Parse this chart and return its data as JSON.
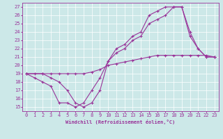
{
  "xlabel": "Windchill (Refroidissement éolien,°C)",
  "xlim": [
    -0.5,
    23.5
  ],
  "ylim": [
    14.5,
    27.5
  ],
  "xticks": [
    0,
    1,
    2,
    3,
    4,
    5,
    6,
    7,
    8,
    9,
    10,
    11,
    12,
    13,
    14,
    15,
    16,
    17,
    18,
    19,
    20,
    21,
    22,
    23
  ],
  "yticks": [
    15,
    16,
    17,
    18,
    19,
    20,
    21,
    22,
    23,
    24,
    25,
    26,
    27
  ],
  "bg_color": "#cce8e8",
  "line_color": "#993399",
  "grid_color": "#ffffff",
  "lines": [
    {
      "x": [
        0,
        1,
        2,
        3,
        4,
        5,
        6,
        7,
        8,
        9,
        10,
        11,
        12,
        13,
        14,
        15,
        16,
        17,
        18,
        19,
        20,
        21,
        22,
        23
      ],
      "y": [
        19,
        19,
        19,
        19,
        19,
        19,
        19,
        19,
        19.2,
        19.5,
        20,
        20.2,
        20.4,
        20.6,
        20.8,
        21,
        21.2,
        21.2,
        21.2,
        21.2,
        21.2,
        21.2,
        21.2,
        21.0
      ]
    },
    {
      "x": [
        0,
        1,
        2,
        3,
        4,
        5,
        6,
        7,
        8,
        9,
        10,
        11,
        12,
        13,
        14,
        15,
        16,
        17,
        18,
        19,
        20,
        21,
        22,
        23
      ],
      "y": [
        19,
        18.5,
        18,
        17.5,
        15.5,
        15.5,
        15.0,
        15.5,
        17.0,
        18.5,
        20.5,
        21.5,
        22.0,
        23.0,
        23.5,
        25.0,
        25.5,
        26.0,
        27.0,
        27.0,
        23.5,
        22.0,
        21.0,
        21.0
      ]
    },
    {
      "x": [
        0,
        2,
        3,
        4,
        5,
        6,
        7,
        8,
        9,
        10,
        11,
        12,
        13,
        14,
        15,
        16,
        17,
        18,
        19,
        20,
        21,
        22,
        23
      ],
      "y": [
        19,
        19,
        18.5,
        18.0,
        17.0,
        15.5,
        15.0,
        15.5,
        17.0,
        20.5,
        22.0,
        22.5,
        23.5,
        24.0,
        26.0,
        26.5,
        27.0,
        27.0,
        27.0,
        24.0,
        22.0,
        21.0,
        21.0
      ]
    }
  ]
}
